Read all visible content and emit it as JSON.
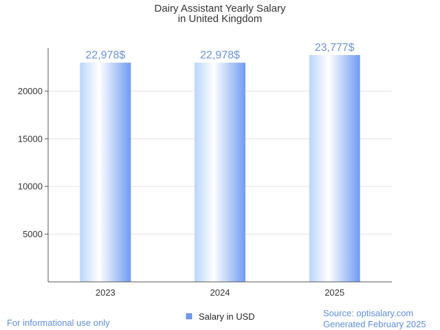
{
  "chart_data": {
    "type": "bar",
    "title": [
      "Dairy Assistant Yearly Salary",
      "in United Kingdom"
    ],
    "categories": [
      "2023",
      "2024",
      "2025"
    ],
    "values": [
      22978,
      22978,
      23777
    ],
    "value_labels": [
      "22,978$",
      "22,978$",
      "23,777$"
    ],
    "series": [
      {
        "name": "Salary in USD",
        "values": [
          22978,
          22978,
          23777
        ]
      }
    ],
    "yticks": [
      5000,
      10000,
      15000,
      20000
    ],
    "ylim": [
      0,
      24500
    ],
    "xlabel": "",
    "ylabel": "",
    "grid": true,
    "legend": "bottom-center",
    "colors": {
      "bar_light": "#ffffff",
      "bar_mid": "#b9d6fb",
      "bar_dark": "#6f9cf0",
      "label": "#6b93d6",
      "grid": "#e3e3e3",
      "axis": "#555555"
    }
  },
  "footer": {
    "disclaimer": "For informational use only",
    "source": "Source: optisalary.com",
    "generated": "Generated February 2025"
  }
}
